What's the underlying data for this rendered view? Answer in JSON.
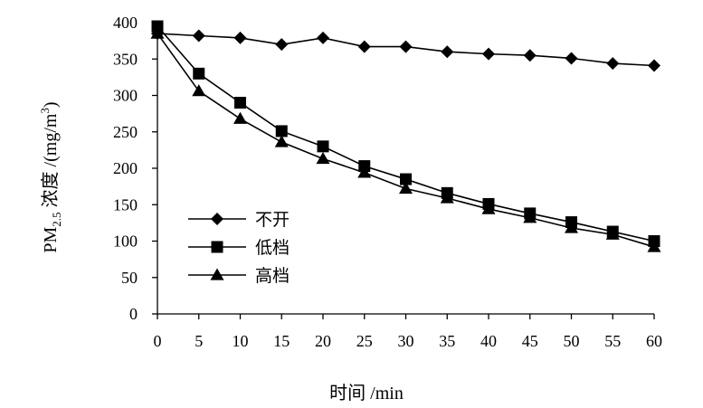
{
  "chart_data": {
    "type": "line",
    "title": "",
    "xlabel": "时间 /min",
    "ylabel": {
      "prefix": "PM",
      "sub": "2.5",
      "mid": " 浓度 /(mg/m",
      "sup": "3",
      "suffix": ")"
    },
    "xlim": [
      0,
      60
    ],
    "ylim": [
      0,
      400
    ],
    "xticks": [
      0,
      5,
      10,
      15,
      20,
      25,
      30,
      35,
      40,
      45,
      50,
      55,
      60
    ],
    "yticks": [
      0,
      50,
      100,
      150,
      200,
      250,
      300,
      350,
      400
    ],
    "grid": false,
    "legend_position": "bottom-left",
    "x": [
      0,
      5,
      10,
      15,
      20,
      25,
      30,
      35,
      40,
      45,
      50,
      55,
      60
    ],
    "series": [
      {
        "name": "不开",
        "marker": "diamond",
        "color": "#000000",
        "values": [
          385,
          382,
          379,
          370,
          379,
          367,
          367,
          360,
          357,
          355,
          351,
          344,
          341
        ]
      },
      {
        "name": "低档",
        "marker": "square",
        "color": "#000000",
        "values": [
          395,
          330,
          290,
          251,
          230,
          203,
          185,
          166,
          151,
          138,
          126,
          113,
          100
        ]
      },
      {
        "name": "高档",
        "marker": "triangle",
        "color": "#000000",
        "values": [
          385,
          306,
          268,
          236,
          213,
          194,
          172,
          159,
          144,
          132,
          118,
          109,
          92
        ]
      }
    ]
  }
}
